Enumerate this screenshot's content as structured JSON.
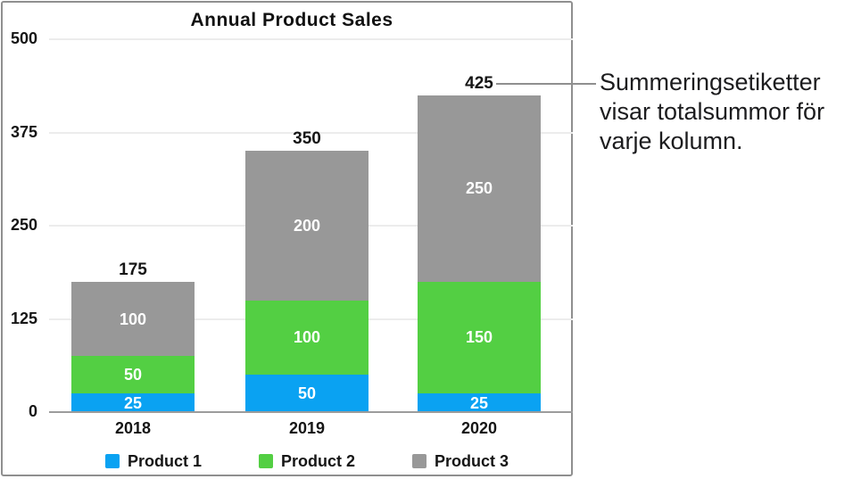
{
  "chart_data": {
    "type": "bar",
    "stacked": true,
    "title": "Annual Product Sales",
    "categories": [
      "2018",
      "2019",
      "2020"
    ],
    "series": [
      {
        "name": "Product 1",
        "color": "#0aa2f2",
        "values": [
          25,
          50,
          25
        ]
      },
      {
        "name": "Product 2",
        "color": "#53cf43",
        "values": [
          50,
          100,
          150
        ]
      },
      {
        "name": "Product 3",
        "color": "#989898",
        "values": [
          100,
          200,
          250
        ]
      }
    ],
    "totals": [
      175,
      350,
      425
    ],
    "ylim": [
      0,
      500
    ],
    "yticks": [
      0,
      125,
      250,
      375,
      500
    ],
    "grid": true,
    "legend_position": "bottom"
  },
  "annotation": {
    "text": "Summeringsetiketter visar totalsummor för varje kolumn.",
    "points_to_total": "425"
  }
}
